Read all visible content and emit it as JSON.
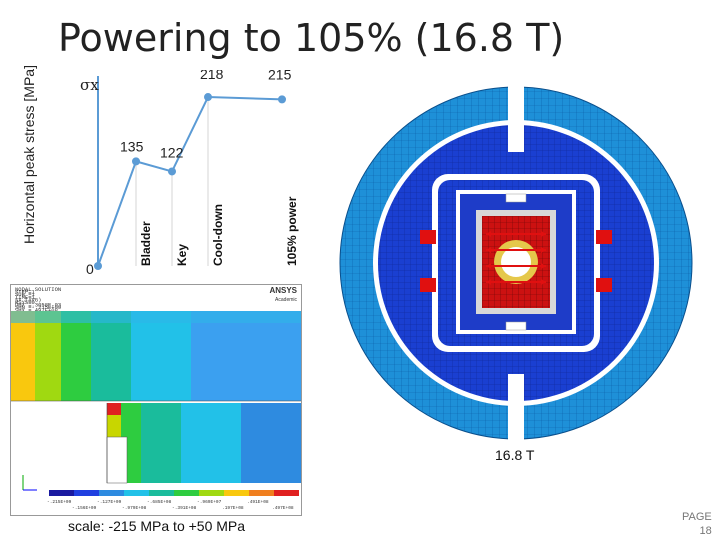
{
  "slide": {
    "title": "Powering to 105% (16.8 T)",
    "scale_note": "scale: -215 MPa to +50 MPa",
    "field_label": "16.8 T",
    "page_label": "PAGE",
    "page_number": "18"
  },
  "chart_data": {
    "type": "line",
    "ylabel": "Horizontal peak stress [MPa]",
    "y_axis_symbol": "σx",
    "categories": [
      "",
      "Bladder",
      "Key",
      "Cool-down",
      "105% power"
    ],
    "values": [
      0,
      135,
      122,
      218,
      215
    ],
    "value_labels": [
      "0",
      "135",
      "122",
      "218",
      "215"
    ],
    "series_color": "#5b9bd5"
  },
  "fea_panel": {
    "header_lines": [
      "NODAL SOLUTION",
      "STEP=1",
      "SUB =1",
      "TIME=1",
      "SX (AVG)",
      "RSYS=0",
      "DMX =.3058E-03",
      "SMN =-.215E+09",
      "SMX =.497E+08"
    ],
    "logo": "ANSYS",
    "edition": "Academic",
    "legend_values": [
      "-.215E+09",
      "-.156E+09",
      "-.127E+09",
      "-.979E+08",
      "-.685E+08",
      "-.391E+08",
      "-.969E+07",
      ".197E+08",
      ".491E+08",
      ".497E+08"
    ]
  },
  "colors": {
    "outer_ring": "#1e90d8",
    "inner_body": "#1a3fd1",
    "coil": "#cc1111",
    "accent_red": "#e01010"
  }
}
